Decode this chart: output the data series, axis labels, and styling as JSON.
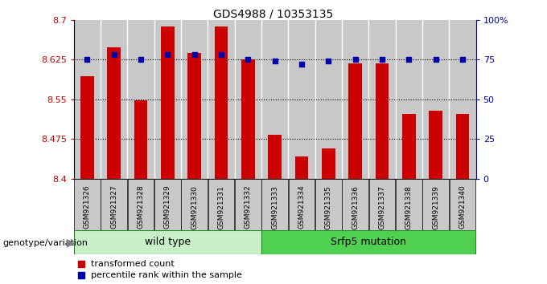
{
  "title": "GDS4988 / 10353135",
  "samples": [
    "GSM921326",
    "GSM921327",
    "GSM921328",
    "GSM921329",
    "GSM921330",
    "GSM921331",
    "GSM921332",
    "GSM921333",
    "GSM921334",
    "GSM921335",
    "GSM921336",
    "GSM921337",
    "GSM921338",
    "GSM921339",
    "GSM921340"
  ],
  "transformed_count": [
    8.593,
    8.648,
    8.548,
    8.688,
    8.638,
    8.688,
    8.625,
    8.483,
    8.443,
    8.458,
    8.618,
    8.618,
    8.523,
    8.528,
    8.523
  ],
  "percentile_rank": [
    75,
    78,
    75,
    78,
    78,
    78,
    75,
    74,
    72,
    74,
    75,
    75,
    75,
    75,
    75
  ],
  "bar_color": "#CC0000",
  "dot_color": "#0000AA",
  "ylim_left": [
    8.4,
    8.7
  ],
  "ylim_right": [
    0,
    100
  ],
  "yticks_left": [
    8.4,
    8.475,
    8.55,
    8.625,
    8.7
  ],
  "ytick_labels_left": [
    "8.4",
    "8.475",
    "8.55",
    "8.625",
    "8.7"
  ],
  "yticks_right": [
    0,
    25,
    50,
    75,
    100
  ],
  "ytick_labels_right": [
    "0",
    "25",
    "50",
    "75",
    "100%"
  ],
  "hlines": [
    8.475,
    8.55,
    8.625
  ],
  "wt_range": [
    0,
    6
  ],
  "mut_range": [
    7,
    14
  ],
  "wt_label": "wild type",
  "mut_label": "Srfp5 mutation",
  "wt_color": "#c8f0c8",
  "mut_color": "#50d050",
  "xlabel_genotype": "genotype/variation",
  "legend_label_red": "transformed count",
  "legend_label_blue": "percentile rank within the sample",
  "col_bg_color": "#c8c8c8",
  "plot_bg_color": "#ffffff"
}
